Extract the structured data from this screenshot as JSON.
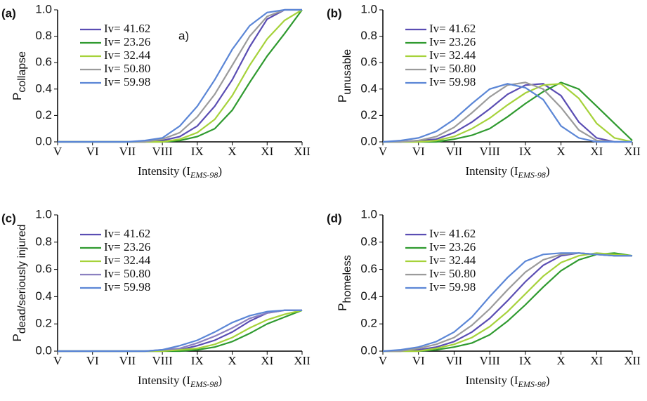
{
  "chart_data": [
    {
      "type": "line",
      "label": "(a)",
      "ylabel": "P",
      "ylabel_sub": "collapse",
      "xlabel": "Intensity (I",
      "xlabel_sub": "EMS-98",
      "xlabel_end": ")",
      "annotation": "a)",
      "x": [
        5,
        5.5,
        6,
        6.5,
        7,
        7.5,
        8,
        8.5,
        9,
        9.5,
        10,
        10.5,
        11,
        11.5,
        12
      ],
      "xlim": [
        5,
        12
      ],
      "xticks": [
        {
          "value": 5,
          "label": "V"
        },
        {
          "value": 6,
          "label": "VI"
        },
        {
          "value": 7,
          "label": "VII"
        },
        {
          "value": 8,
          "label": "VIII"
        },
        {
          "value": 9,
          "label": "IX"
        },
        {
          "value": 10,
          "label": "X"
        },
        {
          "value": 11,
          "label": "XI"
        },
        {
          "value": 12,
          "label": "XII"
        }
      ],
      "ylim": [
        0,
        1
      ],
      "yticks": [
        {
          "value": 0,
          "label": "0.0"
        },
        0.2,
        0.4,
        0.6,
        0.8,
        {
          "value": 1,
          "label": "1.0"
        }
      ],
      "series": [
        {
          "name": "Iv= 41.62",
          "color": "#5a4db3",
          "values": [
            0,
            0,
            0,
            0,
            0,
            0,
            0.01,
            0.04,
            0.12,
            0.27,
            0.47,
            0.72,
            0.93,
            1,
            1
          ]
        },
        {
          "name": "Iv= 23.26",
          "color": "#2f9a2f",
          "values": [
            0,
            0,
            0,
            0,
            0,
            0,
            0,
            0.01,
            0.04,
            0.1,
            0.24,
            0.45,
            0.65,
            0.82,
            1
          ]
        },
        {
          "name": "Iv= 32.44",
          "color": "#a6d23a",
          "values": [
            0,
            0,
            0,
            0,
            0,
            0,
            0,
            0.02,
            0.07,
            0.17,
            0.35,
            0.58,
            0.78,
            0.92,
            1
          ]
        },
        {
          "name": "Iv= 50.80",
          "color": "#9b9b9b",
          "values": [
            0,
            0,
            0,
            0,
            0,
            0,
            0.02,
            0.07,
            0.19,
            0.36,
            0.58,
            0.8,
            0.95,
            1,
            1
          ]
        },
        {
          "name": "Iv= 59.98",
          "color": "#5b86d6",
          "values": [
            0,
            0,
            0,
            0,
            0,
            0.01,
            0.03,
            0.12,
            0.27,
            0.47,
            0.7,
            0.88,
            0.98,
            1,
            1
          ]
        }
      ]
    },
    {
      "type": "line",
      "label": "(b)",
      "ylabel": "P",
      "ylabel_sub": "unusable",
      "xlabel": "Intensity (I",
      "xlabel_sub": "EMS-98",
      "xlabel_end": ")",
      "x": [
        5,
        5.5,
        6,
        6.5,
        7,
        7.5,
        8,
        8.5,
        9,
        9.5,
        10,
        10.5,
        11,
        11.5,
        12
      ],
      "xlim": [
        5,
        12
      ],
      "xticks": [
        {
          "value": 5,
          "label": "V"
        },
        {
          "value": 6,
          "label": "VI"
        },
        {
          "value": 7,
          "label": "VII"
        },
        {
          "value": 8,
          "label": "VIII"
        },
        {
          "value": 9,
          "label": "IX"
        },
        {
          "value": 10,
          "label": "X"
        },
        {
          "value": 11,
          "label": "XI"
        },
        {
          "value": 12,
          "label": "XII"
        }
      ],
      "ylim": [
        0,
        1
      ],
      "yticks": [
        {
          "value": 0,
          "label": "0.0"
        },
        0.2,
        0.4,
        0.6,
        0.8,
        {
          "value": 1,
          "label": "1.0"
        }
      ],
      "series": [
        {
          "name": "Iv= 41.62",
          "color": "#5a4db3",
          "values": [
            0,
            0,
            0.01,
            0.02,
            0.07,
            0.15,
            0.25,
            0.36,
            0.43,
            0.44,
            0.35,
            0.15,
            0.03,
            0,
            0
          ]
        },
        {
          "name": "Iv= 23.26",
          "color": "#2f9a2f",
          "values": [
            0,
            0,
            0,
            0,
            0.02,
            0.05,
            0.1,
            0.19,
            0.29,
            0.38,
            0.45,
            0.4,
            0.27,
            0.14,
            0.01
          ]
        },
        {
          "name": "Iv= 32.44",
          "color": "#a6d23a",
          "values": [
            0,
            0,
            0,
            0.01,
            0.04,
            0.1,
            0.18,
            0.28,
            0.37,
            0.43,
            0.44,
            0.33,
            0.14,
            0.03,
            0
          ]
        },
        {
          "name": "Iv= 50.80",
          "color": "#9b9b9b",
          "values": [
            0,
            0,
            0.01,
            0.04,
            0.11,
            0.22,
            0.34,
            0.43,
            0.45,
            0.4,
            0.26,
            0.09,
            0.01,
            0,
            0
          ]
        },
        {
          "name": "Iv= 59.98",
          "color": "#5b86d6",
          "values": [
            0,
            0.01,
            0.03,
            0.08,
            0.17,
            0.29,
            0.4,
            0.44,
            0.41,
            0.32,
            0.12,
            0.03,
            0,
            0,
            0
          ]
        }
      ]
    },
    {
      "type": "line",
      "label": "(c)",
      "ylabel": "P",
      "ylabel_sub": "dead/seriously injured",
      "xlabel": "Intensity (I",
      "xlabel_sub": "EMS-98",
      "xlabel_end": ")",
      "x": [
        5,
        5.5,
        6,
        6.5,
        7,
        7.5,
        8,
        8.5,
        9,
        9.5,
        10,
        10.5,
        11,
        11.5,
        12
      ],
      "xlim": [
        5,
        12
      ],
      "xticks": [
        {
          "value": 5,
          "label": "V"
        },
        {
          "value": 6,
          "label": "VI"
        },
        {
          "value": 7,
          "label": "VII"
        },
        {
          "value": 8,
          "label": "VIII"
        },
        {
          "value": 9,
          "label": "IX"
        },
        {
          "value": 10,
          "label": "X"
        },
        {
          "value": 11,
          "label": "XI"
        },
        {
          "value": 12,
          "label": "XII"
        }
      ],
      "ylim": [
        0,
        1
      ],
      "yticks": [
        {
          "value": 0,
          "label": "0.0"
        },
        0.2,
        0.4,
        0.6,
        0.8,
        {
          "value": 1,
          "label": "1.0"
        }
      ],
      "series": [
        {
          "name": "Iv= 41.62",
          "color": "#5a4db3",
          "values": [
            0,
            0,
            0,
            0,
            0,
            0,
            0,
            0.01,
            0.04,
            0.08,
            0.14,
            0.22,
            0.28,
            0.3,
            0.3
          ]
        },
        {
          "name": "Iv= 23.26",
          "color": "#2f9a2f",
          "values": [
            0,
            0,
            0,
            0,
            0,
            0,
            0,
            0,
            0.01,
            0.03,
            0.07,
            0.13,
            0.2,
            0.25,
            0.3
          ]
        },
        {
          "name": "Iv= 32.44",
          "color": "#a6d23a",
          "values": [
            0,
            0,
            0,
            0,
            0,
            0,
            0,
            0.01,
            0.02,
            0.05,
            0.1,
            0.17,
            0.23,
            0.27,
            0.3
          ]
        },
        {
          "name": "Iv= 50.80",
          "color": "#8b80c0",
          "values": [
            0,
            0,
            0,
            0,
            0,
            0,
            0.01,
            0.02,
            0.06,
            0.11,
            0.17,
            0.24,
            0.28,
            0.3,
            0.3
          ]
        },
        {
          "name": "Iv= 59.98",
          "color": "#5b86d6",
          "values": [
            0,
            0,
            0,
            0,
            0,
            0,
            0.01,
            0.04,
            0.08,
            0.14,
            0.21,
            0.26,
            0.29,
            0.3,
            0.3
          ]
        }
      ]
    },
    {
      "type": "line",
      "label": "(d)",
      "ylabel": "P",
      "ylabel_sub": "homeless",
      "xlabel": "Intensity (I",
      "xlabel_sub": "EMS-98",
      "xlabel_end": ")",
      "x": [
        5,
        5.5,
        6,
        6.5,
        7,
        7.5,
        8,
        8.5,
        9,
        9.5,
        10,
        10.5,
        11,
        11.5,
        12
      ],
      "xlim": [
        5,
        12
      ],
      "xticks": [
        {
          "value": 5,
          "label": "V"
        },
        {
          "value": 6,
          "label": "VI"
        },
        {
          "value": 7,
          "label": "VII"
        },
        {
          "value": 8,
          "label": "VIII"
        },
        {
          "value": 9,
          "label": "IX"
        },
        {
          "value": 10,
          "label": "X"
        },
        {
          "value": 11,
          "label": "XI"
        },
        {
          "value": 12,
          "label": "XII"
        }
      ],
      "ylim": [
        0,
        1
      ],
      "yticks": [
        {
          "value": 0,
          "label": "0.0"
        },
        0.2,
        0.4,
        0.6,
        0.8,
        {
          "value": 1,
          "label": "1.0"
        }
      ],
      "series": [
        {
          "name": "Iv= 41.62",
          "color": "#5a4db3",
          "values": [
            0,
            0,
            0.01,
            0.03,
            0.07,
            0.14,
            0.24,
            0.37,
            0.51,
            0.63,
            0.7,
            0.72,
            0.71,
            0.7,
            0.7
          ]
        },
        {
          "name": "Iv= 23.26",
          "color": "#2f9a2f",
          "values": [
            0,
            0,
            0,
            0.01,
            0.03,
            0.06,
            0.12,
            0.22,
            0.34,
            0.47,
            0.59,
            0.67,
            0.71,
            0.72,
            0.7
          ]
        },
        {
          "name": "Iv= 32.44",
          "color": "#a6d23a",
          "values": [
            0,
            0,
            0,
            0.02,
            0.05,
            0.1,
            0.18,
            0.29,
            0.42,
            0.55,
            0.65,
            0.7,
            0.72,
            0.71,
            0.7
          ]
        },
        {
          "name": "Iv= 50.80",
          "color": "#9b9b9b",
          "values": [
            0,
            0,
            0.02,
            0.05,
            0.1,
            0.19,
            0.31,
            0.45,
            0.58,
            0.67,
            0.71,
            0.72,
            0.71,
            0.7,
            0.7
          ]
        },
        {
          "name": "Iv= 59.98",
          "color": "#5b86d6",
          "values": [
            0,
            0.01,
            0.03,
            0.07,
            0.14,
            0.25,
            0.4,
            0.54,
            0.66,
            0.71,
            0.72,
            0.72,
            0.71,
            0.7,
            0.7
          ]
        }
      ]
    }
  ]
}
